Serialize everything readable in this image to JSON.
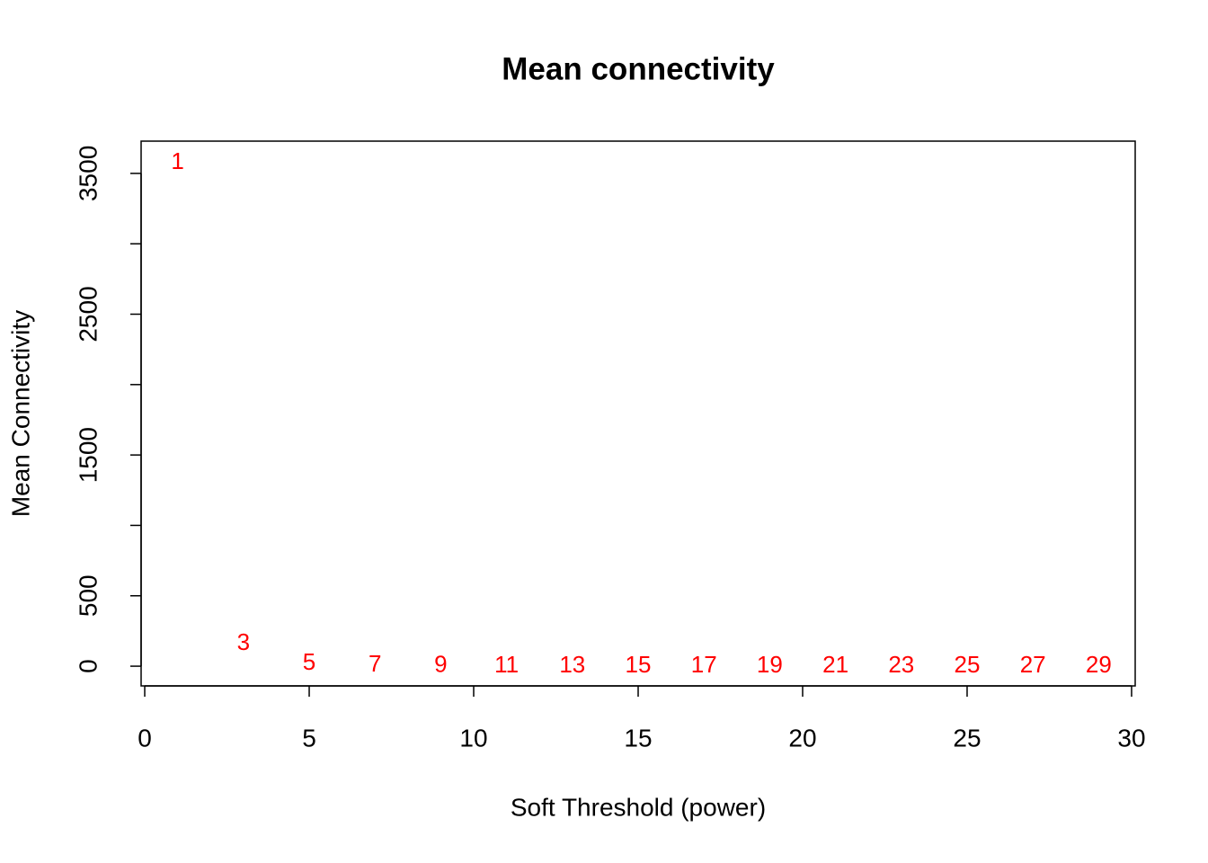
{
  "chart_data": {
    "type": "text-scatter",
    "title": "Mean connectivity",
    "xlabel": "Soft Threshold (power)",
    "ylabel": "Mean Connectivity",
    "x": [
      1,
      3,
      5,
      7,
      9,
      11,
      13,
      15,
      17,
      19,
      21,
      23,
      25,
      27,
      29
    ],
    "values": [
      3576,
      160,
      19,
      5,
      3,
      1,
      0.6,
      0.4,
      0.3,
      0.2,
      0.15,
      0.1,
      0.08,
      0.06,
      0.05
    ],
    "color": "#ff0000",
    "xlim": [
      -0.11,
      30.11
    ],
    "xticks": [
      0,
      5,
      10,
      15,
      20,
      25,
      30
    ],
    "ylim": [
      -140,
      3729
    ],
    "yticks": [
      0,
      500,
      {
        "value": 1000,
        "label": null
      },
      1500,
      {
        "value": 2000,
        "label": null
      },
      2500,
      {
        "value": 3000,
        "label": null
      },
      3500
    ]
  }
}
